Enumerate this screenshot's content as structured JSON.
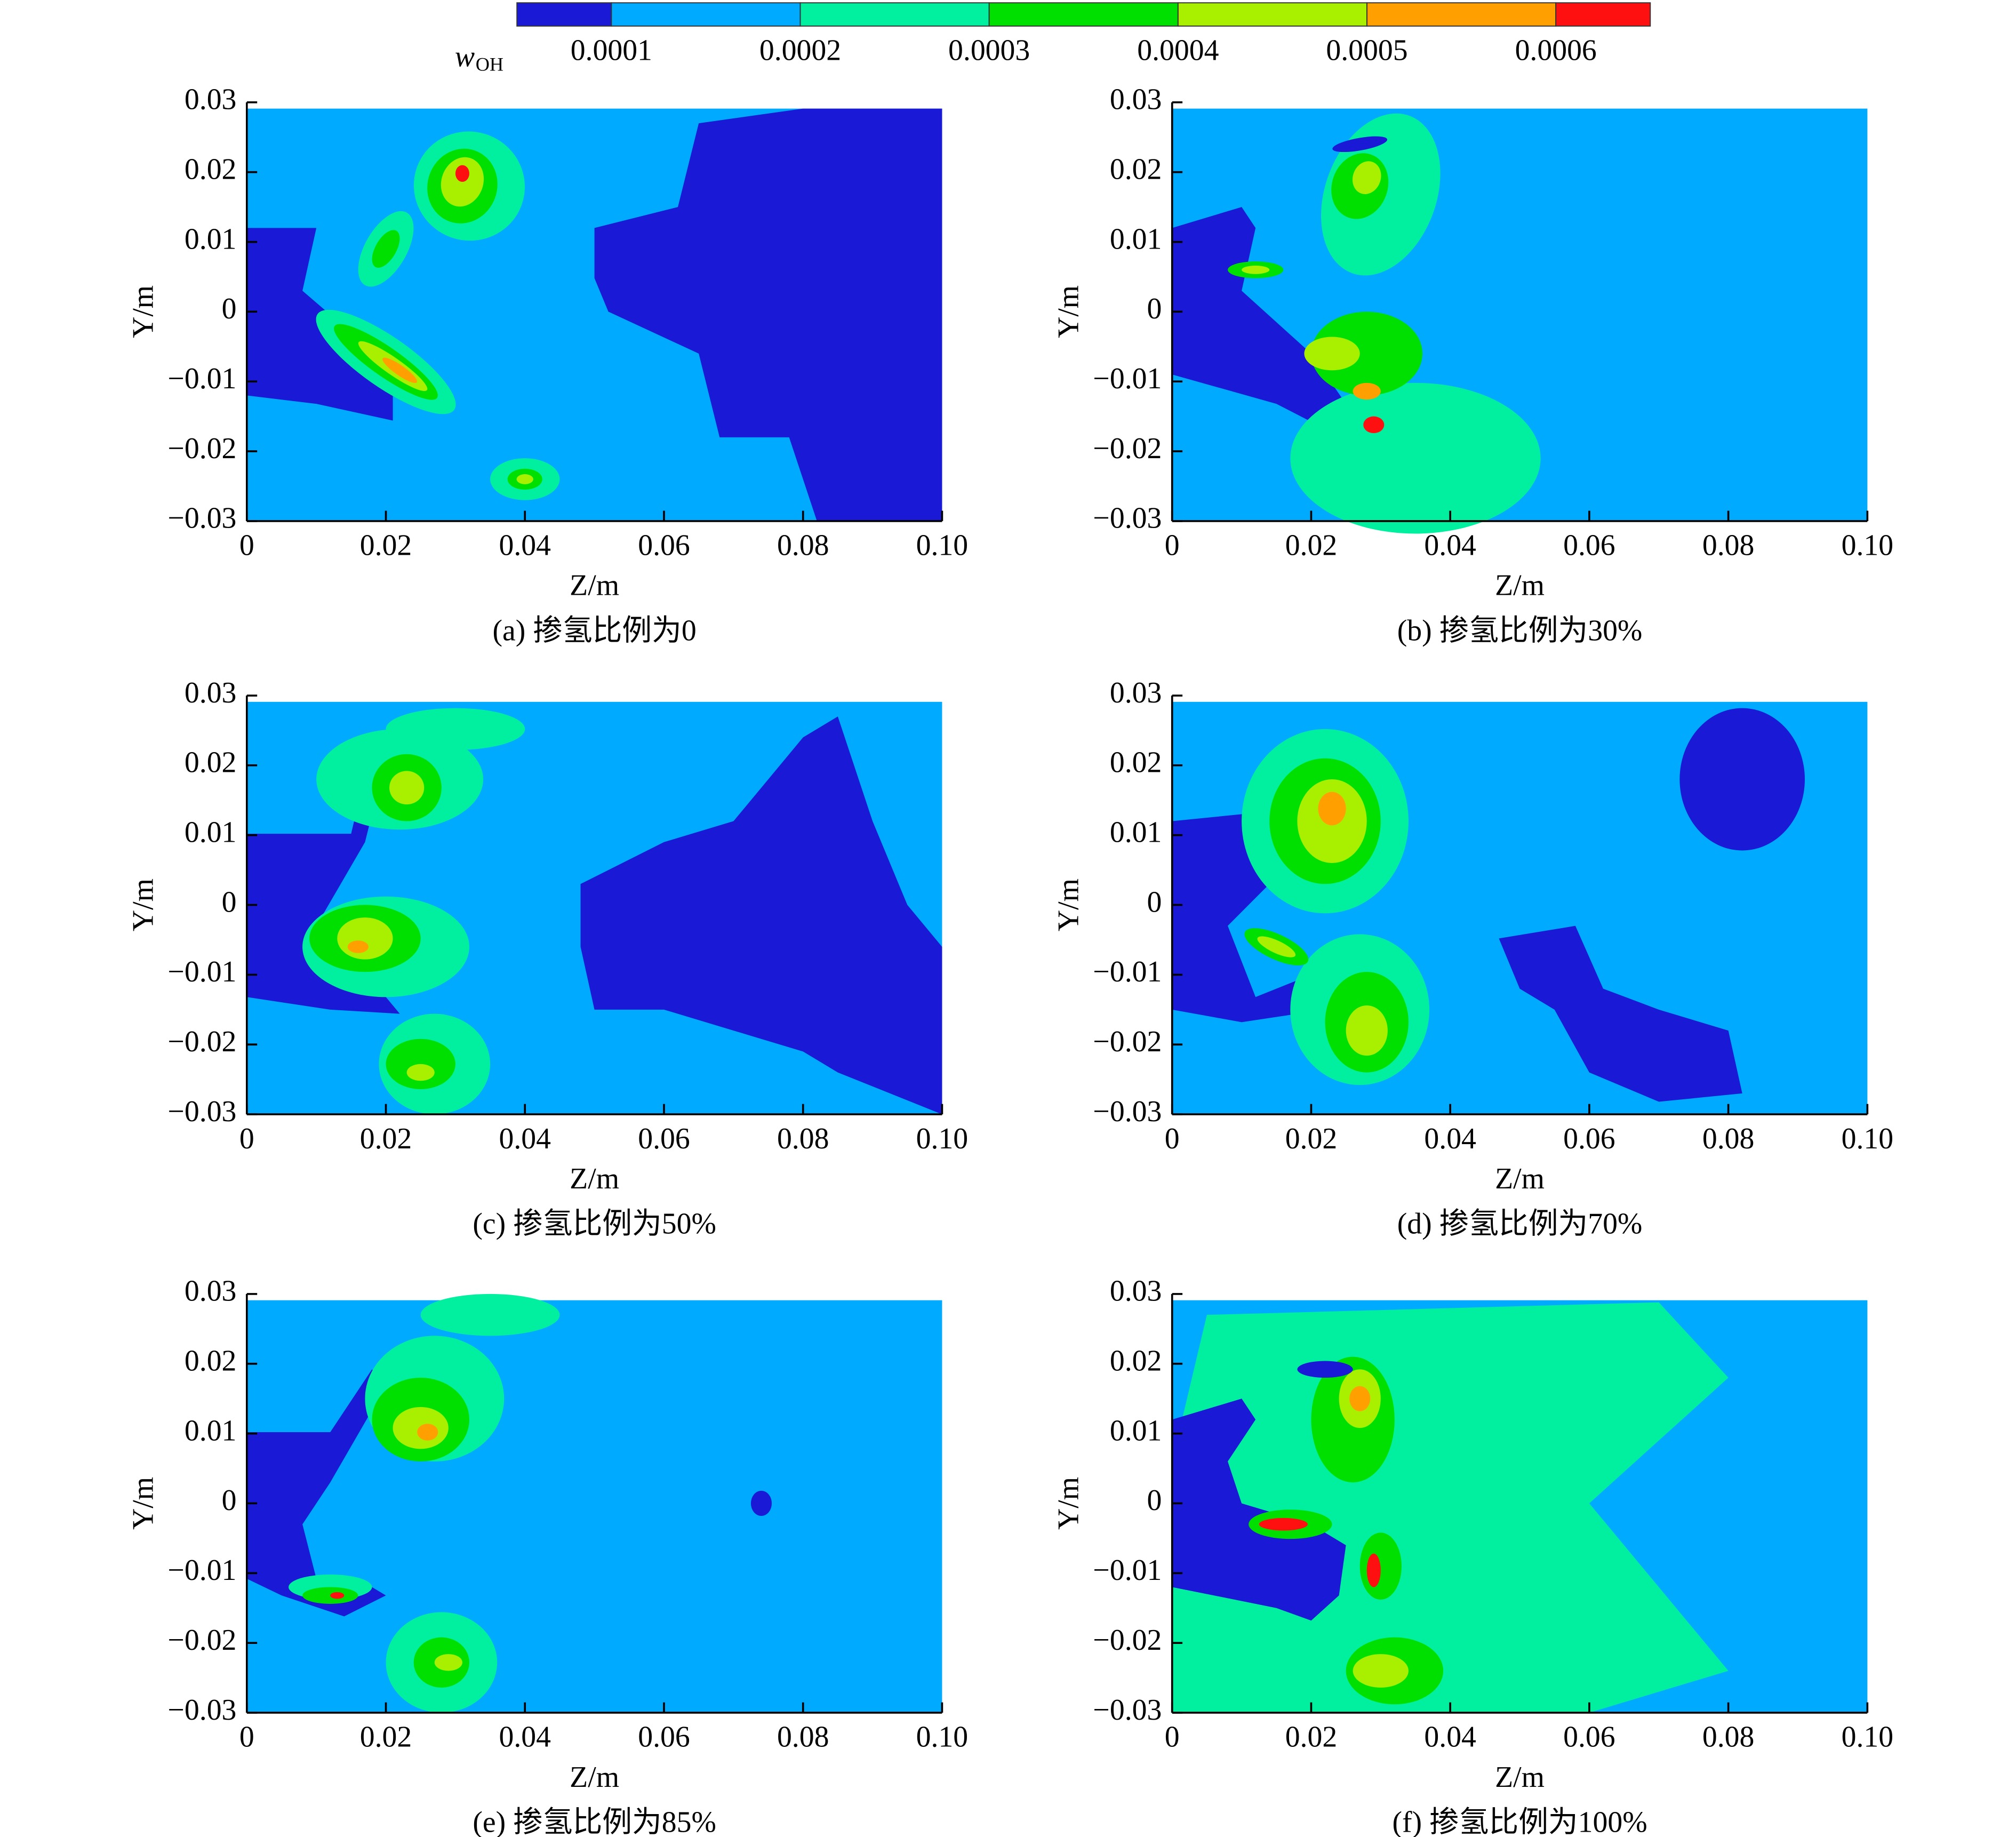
{
  "colorbar": {
    "label": "w",
    "label_subscript": "OH",
    "clim": [
      5e-05,
      0.00065
    ],
    "ticks": [
      0.0001,
      0.0002,
      0.0003,
      0.0004,
      0.0005,
      0.0006
    ],
    "colors": [
      "#1a1ad6",
      "#00aaff",
      "#00f0a0",
      "#00e000",
      "#a8f000",
      "#ffa000",
      "#ff1010"
    ]
  },
  "chart_data": [
    {
      "type": "contour",
      "caption": "(a) 掺氢比例为0",
      "xlabel": "Z/m",
      "ylabel": "Y/m",
      "xlim": [
        0,
        0.1
      ],
      "ylim": [
        -0.03,
        0.03
      ],
      "xticks": [
        0,
        0.02,
        0.04,
        0.06,
        0.08,
        {
          "value": 0.1,
          "label": "0.10"
        }
      ],
      "yticks": [
        {
          "value": -0.03,
          "label": "−0.03"
        },
        {
          "value": -0.02,
          "label": "−0.02"
        },
        {
          "value": -0.01,
          "label": "−0.01"
        },
        0,
        0.01,
        0.02,
        0.03
      ]
    },
    {
      "type": "contour",
      "caption": "(b) 掺氢比例为30%",
      "xlabel": "Z/m",
      "ylabel": "Y/m",
      "xlim": [
        0,
        0.1
      ],
      "ylim": [
        -0.03,
        0.03
      ],
      "xticks": [
        0,
        0.02,
        0.04,
        0.06,
        0.08,
        {
          "value": 0.1,
          "label": "0.10"
        }
      ],
      "yticks": [
        {
          "value": -0.03,
          "label": "−0.03"
        },
        {
          "value": -0.02,
          "label": "−0.02"
        },
        {
          "value": -0.01,
          "label": "−0.01"
        },
        0,
        0.01,
        0.02,
        0.03
      ]
    },
    {
      "type": "contour",
      "caption": "(c) 掺氢比例为50%",
      "xlabel": "Z/m",
      "ylabel": "Y/m",
      "xlim": [
        0,
        0.1
      ],
      "ylim": [
        -0.03,
        0.03
      ],
      "xticks": [
        0,
        0.02,
        0.04,
        0.06,
        0.08,
        {
          "value": 0.1,
          "label": "0.10"
        }
      ],
      "yticks": [
        {
          "value": -0.03,
          "label": "−0.03"
        },
        {
          "value": -0.02,
          "label": "−0.02"
        },
        {
          "value": -0.01,
          "label": "−0.01"
        },
        0,
        0.01,
        0.02,
        0.03
      ]
    },
    {
      "type": "contour",
      "caption": "(d) 掺氢比例为70%",
      "xlabel": "Z/m",
      "ylabel": "Y/m",
      "xlim": [
        0,
        0.1
      ],
      "ylim": [
        -0.03,
        0.03
      ],
      "xticks": [
        0,
        0.02,
        0.04,
        0.06,
        0.08,
        {
          "value": 0.1,
          "label": "0.10"
        }
      ],
      "yticks": [
        {
          "value": -0.03,
          "label": "−0.03"
        },
        {
          "value": -0.02,
          "label": "−0.02"
        },
        {
          "value": -0.01,
          "label": "−0.01"
        },
        0,
        0.01,
        0.02,
        0.03
      ]
    },
    {
      "type": "contour",
      "caption": "(e) 掺氢比例为85%",
      "xlabel": "Z/m",
      "ylabel": "Y/m",
      "xlim": [
        0,
        0.1
      ],
      "ylim": [
        -0.03,
        0.03
      ],
      "xticks": [
        0,
        0.02,
        0.04,
        0.06,
        0.08,
        {
          "value": 0.1,
          "label": "0.10"
        }
      ],
      "yticks": [
        {
          "value": -0.03,
          "label": "−0.03"
        },
        {
          "value": -0.02,
          "label": "−0.02"
        },
        {
          "value": -0.01,
          "label": "−0.01"
        },
        0,
        0.01,
        0.02,
        0.03
      ]
    },
    {
      "type": "contour",
      "caption": "(f) 掺氢比例为100%",
      "xlabel": "Z/m",
      "ylabel": "Y/m",
      "xlim": [
        0,
        0.1
      ],
      "ylim": [
        -0.03,
        0.03
      ],
      "xticks": [
        0,
        0.02,
        0.04,
        0.06,
        0.08,
        {
          "value": 0.1,
          "label": "0.10"
        }
      ],
      "yticks": [
        {
          "value": -0.03,
          "label": "−0.03"
        },
        {
          "value": -0.02,
          "label": "−0.02"
        },
        {
          "value": -0.01,
          "label": "−0.01"
        },
        0,
        0.01,
        0.02,
        0.03
      ]
    }
  ]
}
